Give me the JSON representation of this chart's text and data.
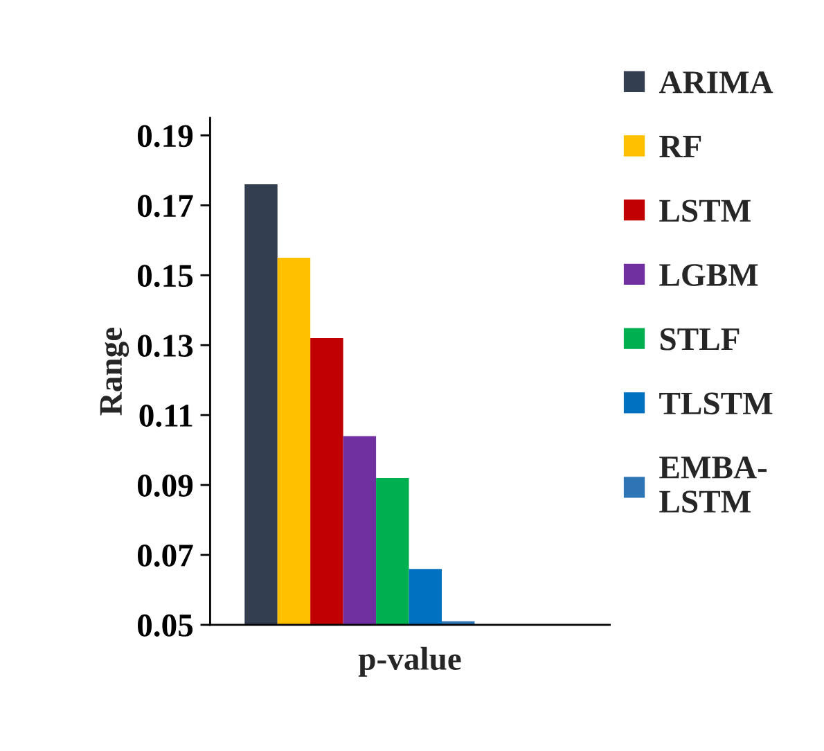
{
  "chart_data": {
    "type": "bar",
    "xlabel": "p-value",
    "ylabel": "Range",
    "categories": [
      null
    ],
    "series": [
      {
        "name": "ARIMA",
        "color": "#333f50",
        "values": [
          0.176
        ]
      },
      {
        "name": "RF",
        "color": "#ffc000",
        "values": [
          0.155
        ]
      },
      {
        "name": "LSTM",
        "color": "#c00000",
        "values": [
          0.132
        ]
      },
      {
        "name": "LGBM",
        "color": "#7030a0",
        "values": [
          0.104
        ]
      },
      {
        "name": "STLF",
        "color": "#00b050",
        "values": [
          0.092
        ]
      },
      {
        "name": "TLSTM",
        "color": "#0070c0",
        "values": [
          0.066
        ]
      },
      {
        "name": "EMBA-LSTM",
        "color": "#2e75b6",
        "values": [
          0.051
        ]
      }
    ],
    "ylim": [
      0.05,
      0.195
    ],
    "yticks": [
      {
        "value": 0.05,
        "label": "0.05"
      },
      {
        "value": 0.07,
        "label": "0.07"
      },
      {
        "value": 0.09,
        "label": "0.09"
      },
      {
        "value": 0.11,
        "label": "0.11"
      },
      {
        "value": 0.13,
        "label": "0.13"
      },
      {
        "value": 0.15,
        "label": "0.15"
      },
      {
        "value": 0.17,
        "label": "0.17"
      },
      {
        "value": 0.19,
        "label": "0.19"
      }
    ],
    "grid": false,
    "legend": "right"
  }
}
